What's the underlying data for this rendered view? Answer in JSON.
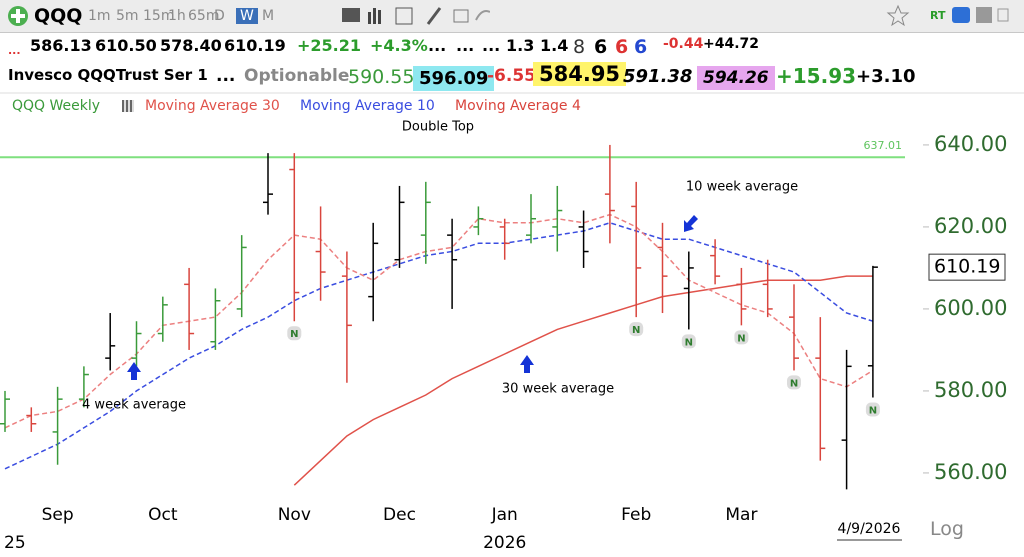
{
  "toolbar": {
    "symbol": "QQQ",
    "intervals": [
      "1m",
      "5m",
      "15m",
      "1h",
      "65m",
      "D",
      "W",
      "M"
    ],
    "active_interval": "W",
    "rt": "RT"
  },
  "quote_row": [
    "...",
    "586.13",
    "610.50",
    "578.40",
    "610.19",
    "+25.21",
    "+4.3%",
    "...",
    "...",
    "...",
    "1.3",
    "1.4",
    "8",
    "6",
    "6",
    "6",
    "-0.44",
    "+44.72"
  ],
  "info_row": [
    "Invesco QQQTrust Ser 1",
    "...",
    "Optionable",
    "590.55",
    "596.09",
    "-6.55",
    "584.95",
    "591.38",
    "594.26",
    "+15.93",
    "+3.10"
  ],
  "footer": {
    "scale_mode": "Log"
  },
  "chart_data": {
    "type": "ohlc",
    "symbol_label": "QQQ Weekly",
    "categories": [
      null,
      null,
      "Sep",
      null,
      null,
      null,
      "Oct",
      null,
      null,
      null,
      null,
      "Nov",
      null,
      null,
      null,
      "Dec",
      null,
      null,
      null,
      "Jan",
      null,
      null,
      null,
      null,
      "Feb",
      null,
      null,
      null,
      "Mar",
      null,
      null,
      null,
      null,
      null
    ],
    "year_labels": [
      "25",
      "2026"
    ],
    "last_date": "4/9/2026",
    "open": [
      572,
      574,
      570,
      578,
      588,
      588,
      594,
      606,
      592,
      600,
      626,
      634,
      614,
      608,
      603,
      612,
      618,
      618,
      620,
      620,
      618,
      620,
      620,
      628,
      625,
      615,
      605,
      613,
      606,
      606,
      598,
      588,
      568,
      586.13
    ],
    "high": [
      580,
      576,
      581,
      586,
      599,
      597,
      603,
      610,
      605,
      618,
      638,
      638,
      625,
      614,
      621,
      630,
      631,
      622,
      625,
      622,
      628,
      630,
      624,
      640,
      631,
      621,
      614,
      617,
      610,
      612,
      606,
      598,
      590,
      610.5
    ],
    "low": [
      570,
      570,
      562,
      576,
      585,
      586,
      592,
      590,
      590,
      598,
      623,
      597,
      602,
      582,
      597,
      610,
      611,
      600,
      618,
      612,
      616,
      614,
      610,
      616,
      598,
      599,
      595,
      606,
      596,
      598,
      585,
      563,
      556,
      578.4
    ],
    "close": [
      578,
      572,
      578,
      584,
      591,
      594,
      601,
      594,
      602,
      615,
      628,
      604,
      609,
      596,
      616,
      626,
      626,
      612,
      622,
      616,
      622,
      624,
      614,
      624,
      610,
      608,
      610,
      608,
      600,
      600,
      588,
      566,
      586,
      610.19
    ],
    "bar_colors": [
      "#3a9a3a",
      "#d9453d",
      "#3a9a3a",
      "#3a9a3a",
      "#000000",
      "#3a9a3a",
      "#3a9a3a",
      "#d9453d",
      "#3a9a3a",
      "#3a9a3a",
      "#000000",
      "#d9453d",
      "#d9453d",
      "#d9453d",
      "#000000",
      "#000000",
      "#3a9a3a",
      "#000000",
      "#3a9a3a",
      "#d9453d",
      "#3a9a3a",
      "#3a9a3a",
      "#000000",
      "#d9453d",
      "#d9453d",
      "#d9453d",
      "#000000",
      "#d9453d",
      "#d9453d",
      "#d9453d",
      "#d9453d",
      "#d9453d",
      "#000000",
      "#000000"
    ],
    "series": [
      {
        "name": "Moving Average 30",
        "color": "#e0524a",
        "style": "solid",
        "values": [
          null,
          null,
          null,
          null,
          null,
          null,
          null,
          null,
          null,
          null,
          null,
          557,
          563,
          569,
          573,
          576,
          579,
          583,
          586,
          589,
          592,
          595,
          597,
          599,
          601,
          603,
          604,
          605,
          606,
          607,
          607,
          607,
          608,
          608
        ]
      },
      {
        "name": "Moving Average 10",
        "color": "#3a4de0",
        "style": "dashed",
        "values": [
          561,
          564,
          567,
          571,
          575,
          580,
          584,
          588,
          591,
          595,
          598,
          602,
          605,
          607,
          609,
          611,
          613,
          614,
          616,
          616,
          617,
          618,
          619,
          621,
          619,
          617,
          617,
          615,
          613,
          611,
          609,
          604,
          599,
          597
        ]
      },
      {
        "name": "Moving Average 4",
        "color": "#ec8080",
        "style": "dashed",
        "values": [
          571,
          574,
          575,
          578,
          584,
          589,
          596,
          597,
          598,
          604,
          612,
          618,
          617,
          610,
          607,
          612,
          614,
          615,
          622,
          621,
          621,
          622,
          621,
          623,
          620,
          614,
          607,
          604,
          601,
          599,
          594,
          583,
          581,
          585
        ]
      }
    ],
    "signals": [
      {
        "index": 11,
        "label": "N"
      },
      {
        "index": 24,
        "label": "N"
      },
      {
        "index": 26,
        "label": "N"
      },
      {
        "index": 28,
        "label": "N"
      },
      {
        "index": 30,
        "label": "N"
      },
      {
        "index": 33,
        "label": "N"
      }
    ],
    "annotations": [
      "Double Top",
      "10 week average",
      "4 week average",
      "30 week average"
    ],
    "reference_line": {
      "value": 637.01,
      "color": "#7fe07f"
    },
    "ylim": [
      553.4,
      647.3
    ],
    "yticks": [
      {
        "value": 560,
        "label": "560.00"
      },
      {
        "value": 580,
        "label": "580.00"
      },
      {
        "value": 600,
        "label": "600.00"
      },
      {
        "value": 620,
        "label": "620.00"
      },
      {
        "value": 640,
        "label": "640.00"
      }
    ]
  }
}
